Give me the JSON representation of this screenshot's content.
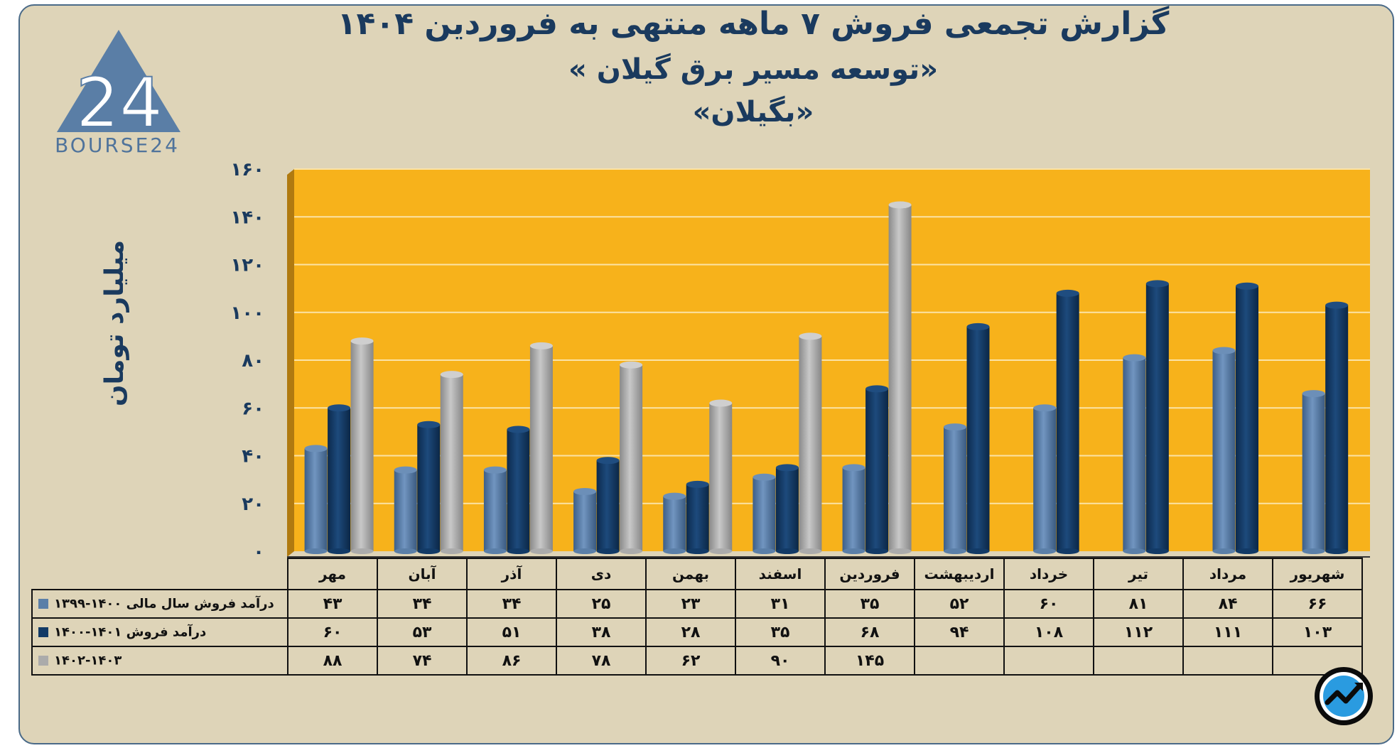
{
  "title": {
    "line1": "گزارش تجمعی فروش ۷ ماهه منتهی به فروردین ۱۴۰۴",
    "line2": "«توسعه مسیر برق گیلان »",
    "line3": "«بگیلان»"
  },
  "logo": {
    "brand": "BOURSE24",
    "mark": "24"
  },
  "colors": {
    "background": "#ded4b8",
    "plot": "#f7b21b",
    "series1": "#5b7fa8",
    "series2": "#123a66",
    "series3": "#ababab"
  },
  "chart_data": {
    "type": "bar",
    "title": "گزارش تجمعی فروش ۷ ماهه منتهی به فروردین ۱۴۰۴",
    "ylabel": "میلیارد تومان",
    "ylim": [
      0,
      160
    ],
    "yticks": [
      0,
      20,
      40,
      60,
      80,
      100,
      120,
      140,
      160
    ],
    "ytick_labels": [
      "۰",
      "۲۰",
      "۴۰",
      "۶۰",
      "۸۰",
      "۱۰۰",
      "۱۲۰",
      "۱۴۰",
      "۱۶۰"
    ],
    "categories": [
      "مهر",
      "آبان",
      "آذر",
      "دی",
      "بهمن",
      "اسفند",
      "فروردین",
      "اردیبهشت",
      "خرداد",
      "تیر",
      "مرداد",
      "شهریور"
    ],
    "series": [
      {
        "name": "درآمد فروش سال مالی ۱۴۰۰-۱۳۹۹",
        "color": "#5b7fa8",
        "values": [
          43,
          34,
          34,
          25,
          23,
          31,
          35,
          52,
          60,
          81,
          84,
          66
        ],
        "labels": [
          "۴۳",
          "۳۴",
          "۳۴",
          "۲۵",
          "۲۳",
          "۳۱",
          "۳۵",
          "۵۲",
          "۶۰",
          "۸۱",
          "۸۴",
          "۶۶"
        ]
      },
      {
        "name": "درآمد فروش ۱۴۰۱-۱۴۰۰",
        "color": "#123a66",
        "values": [
          60,
          53,
          51,
          38,
          28,
          35,
          68,
          94,
          108,
          112,
          111,
          103
        ],
        "labels": [
          "۶۰",
          "۵۳",
          "۵۱",
          "۳۸",
          "۲۸",
          "۳۵",
          "۶۸",
          "۹۴",
          "۱۰۸",
          "۱۱۲",
          "۱۱۱",
          "۱۰۳"
        ]
      },
      {
        "name": "۱۴۰۲-۱۴۰۳",
        "color": "#ababab",
        "values": [
          88,
          74,
          86,
          78,
          62,
          90,
          145,
          null,
          null,
          null,
          null,
          null
        ],
        "labels": [
          "۸۸",
          "۷۴",
          "۸۶",
          "۷۸",
          "۶۲",
          "۹۰",
          "۱۴۵",
          "",
          "",
          "",
          "",
          ""
        ]
      }
    ]
  }
}
